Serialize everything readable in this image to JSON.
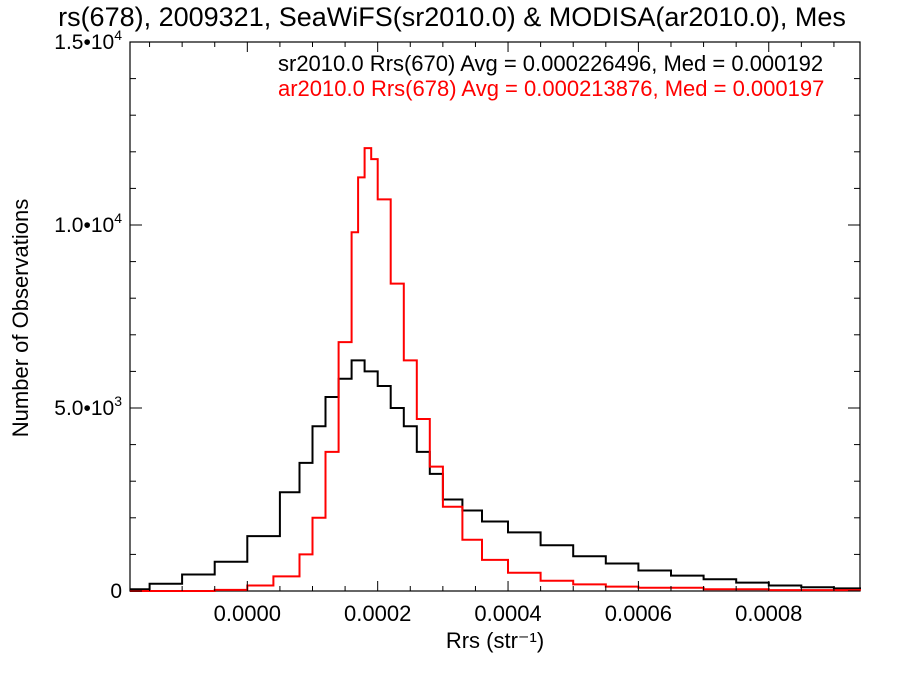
{
  "chart_data": {
    "type": "line",
    "title": "rs(678), 2009321, SeaWiFS(sr2010.0) & MODISA(ar2010.0), Mes",
    "xlabel": "Rrs (str⁻¹)",
    "ylabel": "Number of Observations",
    "xlim": [
      -0.00018,
      0.00094
    ],
    "ylim": [
      0,
      15000
    ],
    "x_ticks": [
      0.0,
      0.0002,
      0.0004,
      0.0006,
      0.0008
    ],
    "x_tick_labels": [
      "0.0000",
      "0.0002",
      "0.0004",
      "0.0006",
      "0.0008"
    ],
    "y_ticks": [
      0,
      5000,
      10000,
      15000
    ],
    "y_tick_labels": [
      {
        "mantissa": "0",
        "exponent": ""
      },
      {
        "mantissa": "5.0•10",
        "exponent": "3"
      },
      {
        "mantissa": "1.0•10",
        "exponent": "4"
      },
      {
        "mantissa": "1.5•10",
        "exponent": "4"
      }
    ],
    "grid": false,
    "legend_position": "top-right",
    "annotations": [
      {
        "text": "sr2010.0 Rrs(670) Avg = 0.000226496, Med = 0.000192",
        "color": "#000000"
      },
      {
        "text": "ar2010.0 Rrs(678) Avg = 0.000213876, Med = 0.000197",
        "color": "#ff0000"
      }
    ],
    "series": [
      {
        "color": "#000000",
        "x": [
          -0.00018,
          -0.00015,
          -0.0001,
          -5e-05,
          0.0,
          5e-05,
          8e-05,
          0.0001,
          0.00012,
          0.00014,
          0.00016,
          0.00018,
          0.0002,
          0.00022,
          0.00024,
          0.00026,
          0.00028,
          0.0003,
          0.00033,
          0.00036,
          0.0004,
          0.00045,
          0.0005,
          0.00055,
          0.0006,
          0.00065,
          0.0007,
          0.00075,
          0.0008,
          0.00085,
          0.0009,
          0.00094
        ],
        "y": [
          50,
          200,
          450,
          800,
          1500,
          2700,
          3500,
          4500,
          5300,
          5800,
          6300,
          6000,
          5600,
          5000,
          4500,
          3800,
          3200,
          2500,
          2200,
          1900,
          1600,
          1250,
          950,
          750,
          560,
          420,
          320,
          230,
          150,
          100,
          70,
          50
        ]
      },
      {
        "color": "#ff0000",
        "x": [
          -0.00018,
          -5e-05,
          0.0,
          4e-05,
          8e-05,
          0.0001,
          0.00012,
          0.00014,
          0.00016,
          0.00017,
          0.00018,
          0.00019,
          0.0002,
          0.00022,
          0.00024,
          0.00026,
          0.00028,
          0.0003,
          0.00033,
          0.00036,
          0.0004,
          0.00045,
          0.0005,
          0.00055,
          0.0006,
          0.0007,
          0.0008,
          0.00094
        ],
        "y": [
          0,
          30,
          150,
          400,
          1000,
          2000,
          3800,
          6800,
          9800,
          11300,
          12100,
          11800,
          10700,
          8400,
          6300,
          4700,
          3400,
          2300,
          1400,
          850,
          500,
          280,
          180,
          120,
          90,
          50,
          25,
          10
        ]
      }
    ]
  }
}
